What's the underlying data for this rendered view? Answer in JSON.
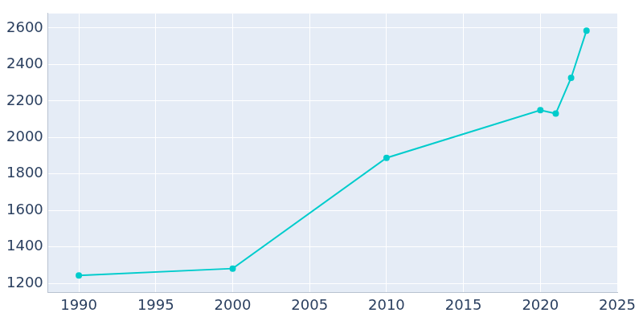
{
  "chart_data": {
    "type": "line",
    "x": [
      1990,
      2000,
      2010,
      2020,
      2021,
      2022,
      2023
    ],
    "values": [
      1243,
      1281,
      1888,
      2150,
      2131,
      2327,
      2586
    ],
    "color": "#00cccc",
    "marker": "circle",
    "xlim": [
      1988,
      2025
    ],
    "xticks": [
      1990,
      1995,
      2000,
      2005,
      2010,
      2015,
      2020,
      2025
    ],
    "ylim": [
      1150,
      2680
    ],
    "yticks": [
      1200,
      1400,
      1600,
      1800,
      2000,
      2200,
      2400,
      2600
    ],
    "grid": true
  }
}
